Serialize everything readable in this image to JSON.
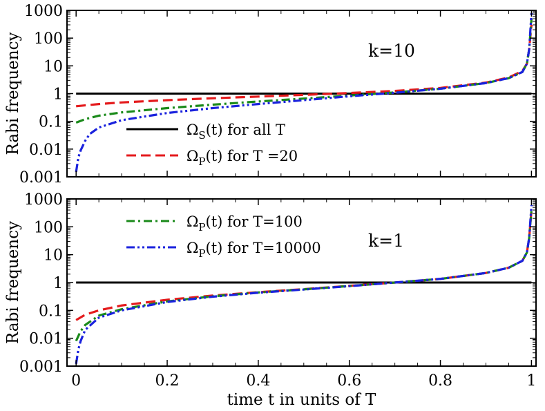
{
  "chart_data": {
    "type": "line",
    "xlabel": "time t in units of T",
    "xlim": [
      -0.02,
      1.01
    ],
    "xticks": [
      0,
      0.2,
      0.4,
      0.6,
      0.8,
      1
    ],
    "xtick_labels": [
      "0",
      "0.2",
      "0.4",
      "0.6",
      "0.8",
      "1"
    ],
    "colors": {
      "S": "#000000",
      "T20": "#e41a1c",
      "T100": "#1a8a1a",
      "T10000": "#1a22dd"
    },
    "panels": [
      {
        "id": "top",
        "annotation": "k=10",
        "ylabel": "Rabi frequency",
        "yscale": "log",
        "ylim": [
          0.001,
          1000
        ],
        "yticks": [
          0.001,
          0.01,
          0.1,
          1,
          10,
          100,
          1000
        ],
        "ytick_labels": [
          "0.001",
          "0.01",
          "0.1",
          "1",
          "10",
          "100",
          "1000"
        ],
        "series": [
          {
            "key": "S",
            "dash": "solid",
            "x": [
              0,
              1
            ],
            "y": [
              1,
              1
            ]
          },
          {
            "key": "T20",
            "dash": "dashed",
            "x": [
              0,
              0.05,
              0.1,
              0.2,
              0.3,
              0.4,
              0.5,
              0.6,
              0.7,
              0.8,
              0.9,
              0.95,
              0.98,
              0.99,
              0.995,
              1.0
            ],
            "y": [
              0.35,
              0.42,
              0.48,
              0.58,
              0.68,
              0.78,
              0.9,
              1.05,
              1.25,
              1.6,
              2.5,
              3.8,
              6.5,
              12,
              40,
              300
            ]
          },
          {
            "key": "T100",
            "dash": "dashdot",
            "x": [
              0,
              0.02,
              0.05,
              0.1,
              0.2,
              0.3,
              0.4,
              0.5,
              0.6,
              0.7,
              0.8,
              0.9,
              0.95,
              0.98,
              0.99,
              0.995,
              1.0
            ],
            "y": [
              0.09,
              0.12,
              0.16,
              0.21,
              0.3,
              0.4,
              0.52,
              0.66,
              0.85,
              1.1,
              1.5,
              2.4,
              3.6,
              6,
              12,
              40,
              500
            ]
          },
          {
            "key": "T10000",
            "dash": "dashdotdot",
            "x": [
              0,
              0.005,
              0.01,
              0.02,
              0.03,
              0.05,
              0.1,
              0.2,
              0.3,
              0.4,
              0.5,
              0.6,
              0.7,
              0.8,
              0.9,
              0.95,
              0.98,
              0.99,
              0.995,
              1.0
            ],
            "y": [
              0.0015,
              0.005,
              0.009,
              0.02,
              0.035,
              0.06,
              0.11,
              0.2,
              0.3,
              0.42,
              0.58,
              0.8,
              1.07,
              1.5,
              2.4,
              3.6,
              6,
              12,
              40,
              800
            ]
          }
        ]
      },
      {
        "id": "bottom",
        "annotation": "k=1",
        "ylabel": "Rabi frequency",
        "yscale": "log",
        "ylim": [
          0.001,
          1000
        ],
        "yticks": [
          0.001,
          0.01,
          0.1,
          1,
          10,
          100,
          1000
        ],
        "ytick_labels": [
          "0.001",
          "0.01",
          "0.1",
          "1",
          "10",
          "100",
          "1000"
        ],
        "series": [
          {
            "key": "S",
            "dash": "solid",
            "x": [
              0,
              1
            ],
            "y": [
              1,
              1
            ]
          },
          {
            "key": "T20",
            "dash": "dashed",
            "x": [
              0,
              0.02,
              0.05,
              0.1,
              0.2,
              0.3,
              0.4,
              0.5,
              0.6,
              0.7,
              0.8,
              0.9,
              0.95,
              0.98,
              0.99,
              0.995,
              1.0
            ],
            "y": [
              0.045,
              0.07,
              0.1,
              0.15,
              0.24,
              0.34,
              0.45,
              0.58,
              0.76,
              1.0,
              1.35,
              2.2,
              3.4,
              6,
              12,
              40,
              400
            ]
          },
          {
            "key": "T100",
            "dash": "dashdot",
            "x": [
              0,
              0.01,
              0.02,
              0.05,
              0.1,
              0.2,
              0.3,
              0.4,
              0.5,
              0.6,
              0.7,
              0.8,
              0.9,
              0.95,
              0.98,
              0.99,
              0.995,
              1.0
            ],
            "y": [
              0.008,
              0.018,
              0.03,
              0.065,
              0.11,
              0.21,
              0.32,
              0.44,
              0.57,
              0.75,
              1.0,
              1.35,
              2.2,
              3.4,
              6,
              12,
              40,
              400
            ]
          },
          {
            "key": "T10000",
            "dash": "dashdotdot",
            "x": [
              0,
              0.005,
              0.01,
              0.02,
              0.05,
              0.1,
              0.2,
              0.3,
              0.4,
              0.5,
              0.6,
              0.7,
              0.8,
              0.9,
              0.95,
              0.98,
              0.99,
              0.995,
              1.0
            ],
            "y": [
              0.0012,
              0.004,
              0.008,
              0.02,
              0.055,
              0.1,
              0.2,
              0.31,
              0.43,
              0.56,
              0.74,
              1.0,
              1.35,
              2.2,
              3.4,
              6,
              12,
              40,
              600
            ]
          }
        ]
      }
    ],
    "legend": {
      "top": [
        {
          "key": "S",
          "dash": "solid",
          "omega": "Ω",
          "sub": "S",
          "rest": "(t) for all T"
        },
        {
          "key": "T20",
          "dash": "dashed",
          "omega": "Ω",
          "sub": "P",
          "rest": "(t) for T =20"
        }
      ],
      "bottom": [
        {
          "key": "T100",
          "dash": "dashdot",
          "omega": "Ω",
          "sub": "P",
          "rest": "(t) for T=100"
        },
        {
          "key": "T10000",
          "dash": "dashdotdot",
          "omega": "Ω",
          "sub": "P",
          "rest": "(t) for T=10000"
        }
      ]
    }
  }
}
